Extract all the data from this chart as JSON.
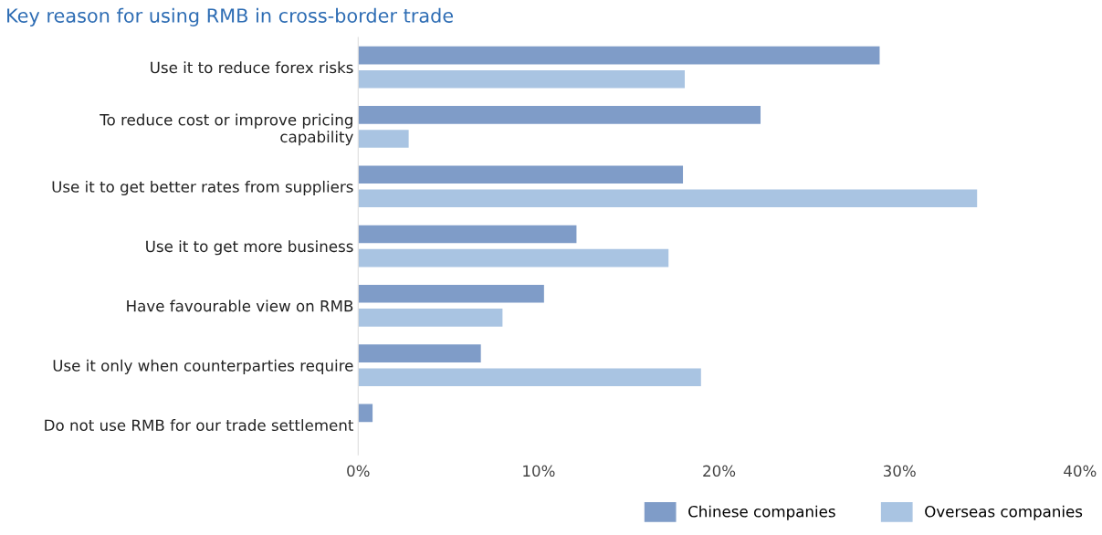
{
  "chart_data": {
    "type": "bar",
    "orientation": "horizontal",
    "title": "Key reason for using RMB in cross-border trade",
    "categories": [
      "Use it to reduce forex risks",
      "To reduce cost or improve pricing\ncapability",
      "Use it to get better rates from suppliers",
      "Use it to get more business",
      "Have favourable view on RMB",
      "Use it only when counterparties require",
      "Do not use RMB for our trade settlement"
    ],
    "series": [
      {
        "name": "Chinese companies",
        "color": "#7f9cc8",
        "values": [
          28.9,
          22.3,
          18.0,
          12.1,
          10.3,
          6.8,
          0.8
        ]
      },
      {
        "name": "Overseas companies",
        "color": "#a9c4e2",
        "values": [
          18.1,
          2.8,
          34.3,
          17.2,
          8.0,
          19.0,
          null
        ]
      }
    ],
    "xlim": [
      0,
      40
    ],
    "xticks": [
      {
        "value": 0,
        "label": "0%"
      },
      {
        "value": 10,
        "label": "10%"
      },
      {
        "value": 20,
        "label": "20%"
      },
      {
        "value": 30,
        "label": "30%"
      },
      {
        "value": 40,
        "label": "40%"
      }
    ],
    "grid": false,
    "legend": "bottom right"
  }
}
